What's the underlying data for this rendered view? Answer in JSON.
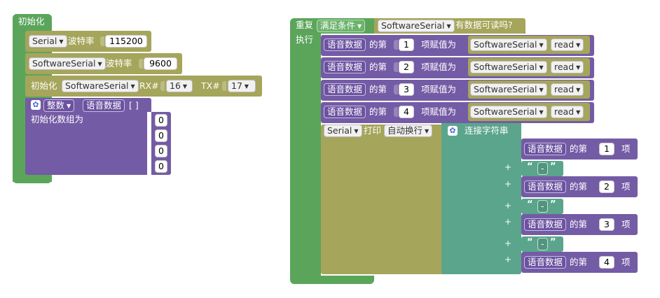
{
  "init_block": {
    "title": "初始化",
    "serial_rows": [
      {
        "port": "Serial",
        "label": "波特率",
        "baud": "115200"
      },
      {
        "port": "SoftwareSerial",
        "label": "波特率",
        "baud": "9600"
      }
    ],
    "softserial_init": {
      "prefix": "初始化",
      "port": "SoftwareSerial",
      "rx_label": "RX#",
      "rx": "16",
      "tx_label": "TX#",
      "tx": "17"
    },
    "array_decl": {
      "type": "整数",
      "name": "语音数据",
      "brackets": "[ ]",
      "init_label": "初始化数组为",
      "values": [
        "0",
        "0",
        "0",
        "0"
      ]
    }
  },
  "repeat_block": {
    "repeat_label": "重复",
    "condition": "满足条件",
    "port": "SoftwareSerial",
    "available_text": "有数据可读吗?",
    "do_label": "执行",
    "assign_rows": [
      {
        "array": "语音数据",
        "of": "的第",
        "index": "1",
        "assign": "项赋值为",
        "port": "SoftwareSerial",
        "method": "read"
      },
      {
        "array": "语音数据",
        "of": "的第",
        "index": "2",
        "assign": "项赋值为",
        "port": "SoftwareSerial",
        "method": "read"
      },
      {
        "array": "语音数据",
        "of": "的第",
        "index": "3",
        "assign": "项赋值为",
        "port": "SoftwareSerial",
        "method": "read"
      },
      {
        "array": "语音数据",
        "of": "的第",
        "index": "4",
        "assign": "项赋值为",
        "port": "SoftwareSerial",
        "method": "read"
      }
    ],
    "print_block": {
      "port": "Serial",
      "print_label": "打印",
      "mode": "自动换行",
      "join_label": "连接字符串",
      "items": [
        {
          "array": "语音数据",
          "of": "的第",
          "index": "1",
          "suffix": "项"
        },
        {
          "array": "语音数据",
          "of": "的第",
          "index": "2",
          "suffix": "项"
        },
        {
          "array": "语音数据",
          "of": "的第",
          "index": "3",
          "suffix": "项"
        },
        {
          "array": "语音数据",
          "of": "的第",
          "index": "4",
          "suffix": "项"
        }
      ],
      "separator": "-",
      "quote_open": "“",
      "quote_close": "”",
      "plus": "+"
    }
  }
}
